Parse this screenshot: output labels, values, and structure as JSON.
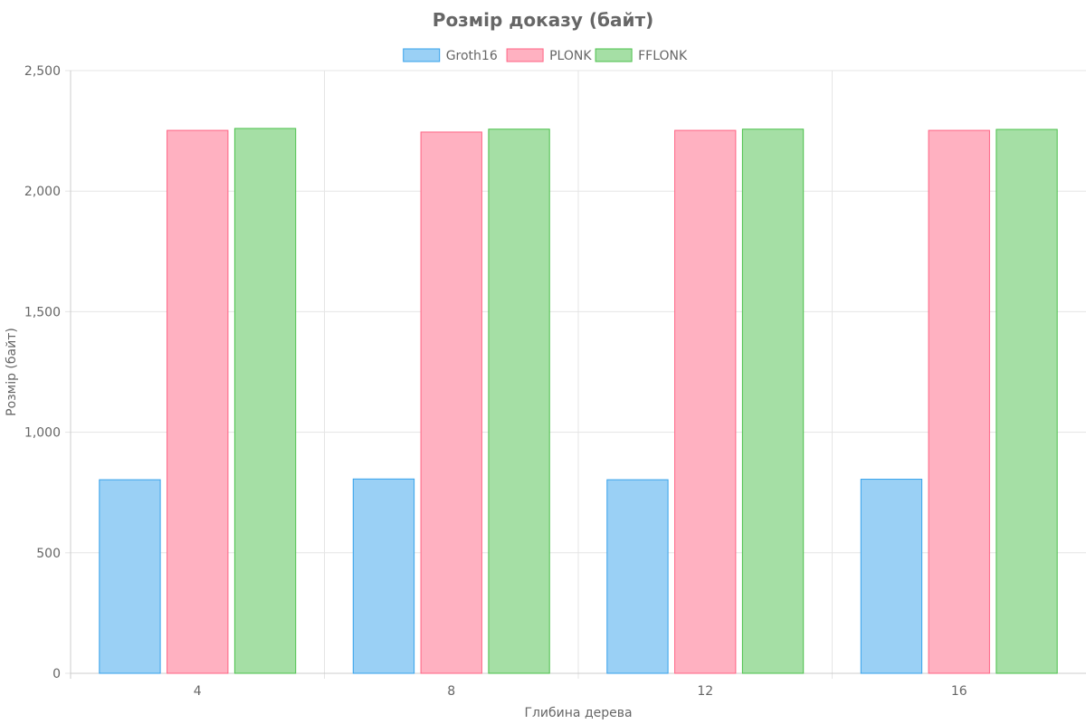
{
  "chart_data": {
    "type": "bar",
    "title": "Розмір доказу (байт)",
    "xlabel": "Глибина дерева",
    "ylabel": "Розмір (байт)",
    "categories": [
      "4",
      "8",
      "12",
      "16"
    ],
    "ylim": [
      0,
      2500
    ],
    "yticks": [
      0,
      500,
      1000,
      1500,
      2000,
      2500
    ],
    "ytick_labels": [
      "0",
      "500",
      "1,000",
      "1,500",
      "2,000",
      "2,500"
    ],
    "grid": true,
    "legend_position": "top-center",
    "series": [
      {
        "name": "Groth16",
        "values": [
          803,
          806,
          803,
          805
        ],
        "fill": "#9ad0f5",
        "stroke": "#36a2eb"
      },
      {
        "name": "PLONK",
        "values": [
          2252,
          2245,
          2252,
          2252
        ],
        "fill": "#ffb1c1",
        "stroke": "#ff6384"
      },
      {
        "name": "FFLONK",
        "values": [
          2260,
          2257,
          2257,
          2256
        ],
        "fill": "#a5dfa5",
        "stroke": "#4bc04b"
      }
    ]
  }
}
